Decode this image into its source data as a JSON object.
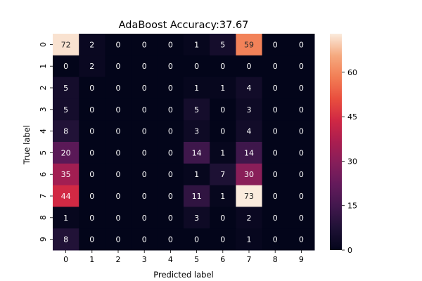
{
  "chart_data": {
    "type": "heatmap",
    "title": "AdaBoost Accuracy:37.67",
    "xlabel": "Predicted label",
    "ylabel": "True label",
    "x_categories": [
      "0",
      "1",
      "2",
      "3",
      "4",
      "5",
      "6",
      "7",
      "8",
      "9"
    ],
    "y_categories": [
      "0",
      "1",
      "2",
      "3",
      "4",
      "5",
      "6",
      "7",
      "8",
      "9"
    ],
    "values": [
      [
        72,
        2,
        0,
        0,
        0,
        1,
        5,
        59,
        0,
        0
      ],
      [
        0,
        2,
        0,
        0,
        0,
        0,
        0,
        0,
        0,
        0
      ],
      [
        5,
        0,
        0,
        0,
        0,
        1,
        1,
        4,
        0,
        0
      ],
      [
        5,
        0,
        0,
        0,
        0,
        5,
        0,
        3,
        0,
        0
      ],
      [
        8,
        0,
        0,
        0,
        0,
        3,
        0,
        4,
        0,
        0
      ],
      [
        20,
        0,
        0,
        0,
        0,
        14,
        1,
        14,
        0,
        0
      ],
      [
        35,
        0,
        0,
        0,
        0,
        1,
        7,
        30,
        0,
        0
      ],
      [
        44,
        0,
        0,
        0,
        0,
        11,
        1,
        73,
        0,
        0
      ],
      [
        1,
        0,
        0,
        0,
        0,
        3,
        0,
        2,
        0,
        0
      ],
      [
        8,
        0,
        0,
        0,
        0,
        0,
        0,
        1,
        0,
        0
      ]
    ],
    "colorbar": {
      "min": 0,
      "max": 73,
      "ticks": [
        0,
        15,
        30,
        45,
        60
      ]
    },
    "colormap": "rocket"
  }
}
